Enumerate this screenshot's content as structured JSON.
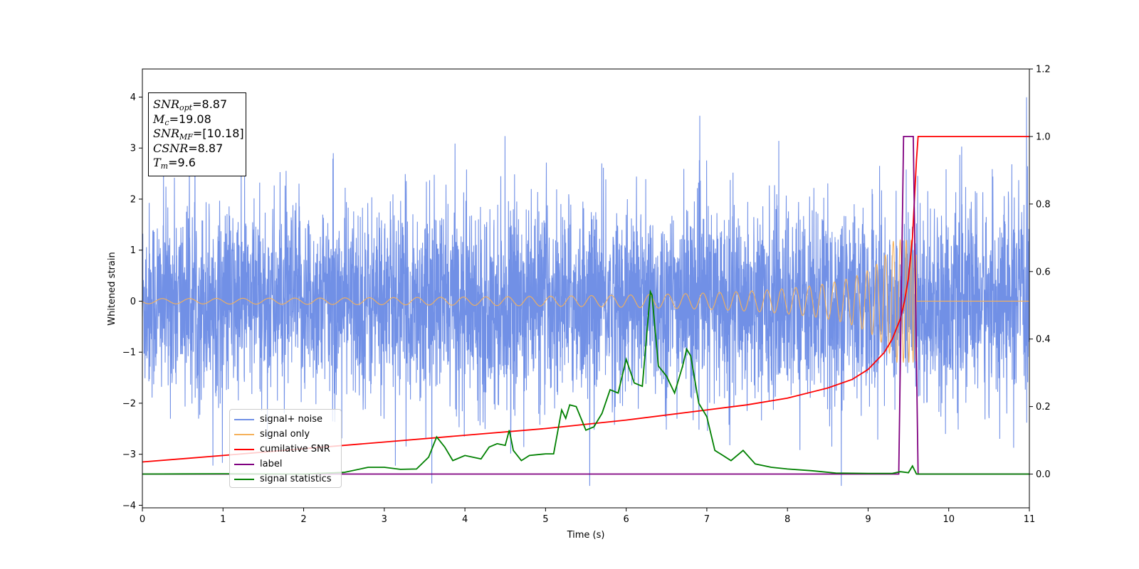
{
  "chart_data": {
    "type": "line",
    "xlabel": "Time (s)",
    "ylabel": "Whitened strain",
    "xlim": [
      0,
      11
    ],
    "ylim_left": [
      -4.05,
      4.55
    ],
    "ylim_right": [
      -0.1,
      1.2
    ],
    "x_ticks": [
      "0",
      "1",
      "2",
      "3",
      "4",
      "5",
      "6",
      "7",
      "8",
      "9",
      "10",
      "11"
    ],
    "y_ticks_left": [
      "−4",
      "−3",
      "−2",
      "−1",
      "0",
      "1",
      "2",
      "3",
      "4"
    ],
    "y_ticks_right": [
      "0.0",
      "0.2",
      "0.4",
      "0.6",
      "0.8",
      "1.0",
      "1.2"
    ],
    "legend_position": "lower-left",
    "annotation": {
      "snr_opt": "=8.87",
      "mc": "=19.08",
      "snr_mf": "=[10.18]",
      "csnr": "=8.87",
      "tm": "=9.6"
    },
    "series": [
      {
        "name": "signal+ noise",
        "color": "#7190e6",
        "axis": "left",
        "description_values": {
          "mean": 0.0,
          "approx_std": 1.0,
          "max_spike": 4.17,
          "min_spike": -3.62
        }
      },
      {
        "name": "signal only",
        "color": "#f5b15a",
        "axis": "left",
        "chirp": {
          "merger_time": 9.6,
          "peak_amplitude": 1.2,
          "start_amplitude": 0.05
        }
      },
      {
        "name": "cumilative SNR",
        "color": "#ff0000",
        "axis": "right",
        "x": [
          0,
          1,
          2,
          3,
          4,
          5,
          6,
          7,
          7.5,
          8,
          8.5,
          8.8,
          9.0,
          9.2,
          9.3,
          9.4,
          9.45,
          9.5,
          9.55,
          9.6,
          9.62,
          10,
          11
        ],
        "y": [
          0.036,
          0.055,
          0.075,
          0.095,
          0.115,
          0.135,
          0.16,
          0.19,
          0.205,
          0.225,
          0.255,
          0.28,
          0.31,
          0.36,
          0.4,
          0.46,
          0.51,
          0.58,
          0.7,
          0.93,
          1.0,
          1.0,
          1.0
        ]
      },
      {
        "name": "label",
        "color": "#800080",
        "axis": "right",
        "x": [
          0,
          9.38,
          9.44,
          9.56,
          9.62,
          11
        ],
        "y": [
          0,
          0,
          1.0,
          1.0,
          0,
          0
        ]
      },
      {
        "name": "signal statistics",
        "color": "#008000",
        "axis": "right",
        "x": [
          0,
          1,
          2,
          2.5,
          2.8,
          3.0,
          3.2,
          3.4,
          3.55,
          3.65,
          3.75,
          3.85,
          4.0,
          4.2,
          4.3,
          4.4,
          4.5,
          4.55,
          4.6,
          4.7,
          4.8,
          5.0,
          5.1,
          5.2,
          5.25,
          5.3,
          5.38,
          5.5,
          5.6,
          5.7,
          5.8,
          5.9,
          6.0,
          6.1,
          6.2,
          6.3,
          6.32,
          6.4,
          6.5,
          6.6,
          6.7,
          6.75,
          6.8,
          6.9,
          7.0,
          7.1,
          7.2,
          7.3,
          7.45,
          7.6,
          7.8,
          8.0,
          8.3,
          8.6,
          9.0,
          9.3,
          9.4,
          9.5,
          9.55,
          9.6,
          9.7,
          10,
          11
        ],
        "y": [
          0,
          0.001,
          0.0,
          0.005,
          0.02,
          0.02,
          0.014,
          0.015,
          0.05,
          0.11,
          0.08,
          0.04,
          0.055,
          0.045,
          0.08,
          0.09,
          0.085,
          0.13,
          0.07,
          0.04,
          0.055,
          0.06,
          0.06,
          0.19,
          0.165,
          0.205,
          0.2,
          0.13,
          0.14,
          0.18,
          0.25,
          0.24,
          0.34,
          0.27,
          0.26,
          0.54,
          0.53,
          0.32,
          0.29,
          0.24,
          0.32,
          0.37,
          0.35,
          0.21,
          0.17,
          0.07,
          0.055,
          0.04,
          0.07,
          0.03,
          0.02,
          0.015,
          0.01,
          0.003,
          0.002,
          0.002,
          0.007,
          0.004,
          0.024,
          0.0,
          0.0,
          0.0,
          0.0
        ]
      }
    ]
  }
}
